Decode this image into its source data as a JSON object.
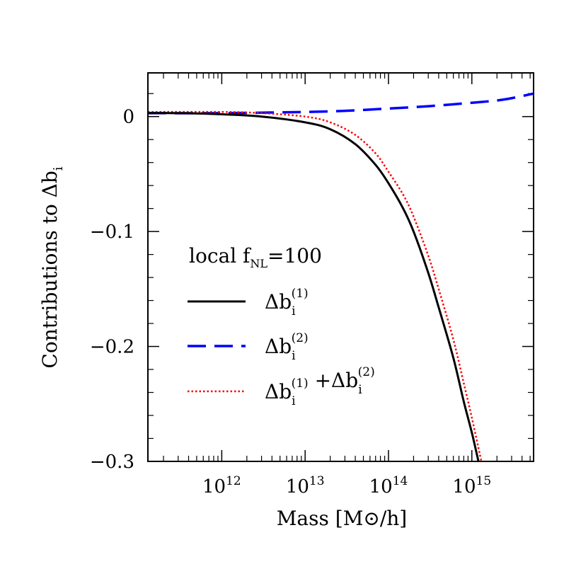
{
  "chart_data": {
    "type": "line",
    "xlabel": "Mass [M⊙/h]",
    "ylabel": "Contributions to Δb_i",
    "xscale": "log",
    "xlim": [
      130000000000.0,
      5500000000000000.0
    ],
    "ylim": [
      -0.3,
      0.038
    ],
    "x_ticks": [
      {
        "value": 1000000000000.0,
        "base": "10",
        "exp": "12"
      },
      {
        "value": 10000000000000.0,
        "base": "10",
        "exp": "13"
      },
      {
        "value": 100000000000000.0,
        "base": "10",
        "exp": "14"
      },
      {
        "value": 1000000000000000.0,
        "base": "10",
        "exp": "15"
      }
    ],
    "y_ticks": [
      {
        "value": 0,
        "label": "0"
      },
      {
        "value": -0.1,
        "label": "−0.1"
      },
      {
        "value": -0.2,
        "label": "−0.2"
      },
      {
        "value": -0.3,
        "label": "−0.3"
      }
    ],
    "legend": {
      "placement": "center-left",
      "header": {
        "text": "local f",
        "sub": "NL",
        "suffix": "=100"
      }
    },
    "series": [
      {
        "key": "db1",
        "label": {
          "parts": [
            {
              "t": "Δb",
              "sub": "i",
              "sup": "(1)"
            }
          ]
        },
        "color": "#000000",
        "style": "solid",
        "x": [
          130000000000.0,
          300000000000.0,
          1000000000000.0,
          3000000000000.0,
          10000000000000.0,
          20000000000000.0,
          40000000000000.0,
          70000000000000.0,
          100000000000000.0,
          150000000000000.0,
          200000000000000.0,
          300000000000000.0,
          400000000000000.0,
          600000000000000.0,
          800000000000000.0,
          1000000000000000.0,
          1200000000000000.0
        ],
        "y": [
          0.003,
          0.003,
          0.002,
          0.0,
          -0.005,
          -0.011,
          -0.024,
          -0.042,
          -0.058,
          -0.08,
          -0.1,
          -0.136,
          -0.166,
          -0.21,
          -0.248,
          -0.275,
          -0.3
        ]
      },
      {
        "key": "db2",
        "label": {
          "parts": [
            {
              "t": "Δb",
              "sub": "i",
              "sup": "(2)"
            }
          ]
        },
        "color": "#0000ff",
        "style": "dashed",
        "x": [
          130000000000.0,
          1000000000000.0,
          10000000000000.0,
          30000000000000.0,
          100000000000000.0,
          300000000000000.0,
          1000000000000000.0,
          2000000000000000.0,
          3000000000000000.0,
          5500000000000000.0
        ],
        "y": [
          0.003,
          0.003,
          0.004,
          0.005,
          0.007,
          0.009,
          0.012,
          0.014,
          0.016,
          0.02
        ]
      },
      {
        "key": "db12",
        "label": {
          "parts": [
            {
              "t": "Δb",
              "sub": "i",
              "sup": "(1)"
            },
            {
              "t": " +Δb",
              "sub": "i",
              "sup": "(2)"
            }
          ]
        },
        "color": "#ff0000",
        "style": "dotted",
        "x": [
          130000000000.0,
          1000000000000.0,
          3000000000000.0,
          10000000000000.0,
          20000000000000.0,
          40000000000000.0,
          70000000000000.0,
          100000000000000.0,
          150000000000000.0,
          200000000000000.0,
          300000000000000.0,
          400000000000000.0,
          600000000000000.0,
          800000000000000.0,
          1000000000000000.0,
          1300000000000000.0
        ],
        "y": [
          0.004,
          0.004,
          0.003,
          0.0,
          -0.005,
          -0.016,
          -0.032,
          -0.048,
          -0.068,
          -0.087,
          -0.121,
          -0.15,
          -0.194,
          -0.232,
          -0.262,
          -0.3
        ]
      }
    ]
  }
}
